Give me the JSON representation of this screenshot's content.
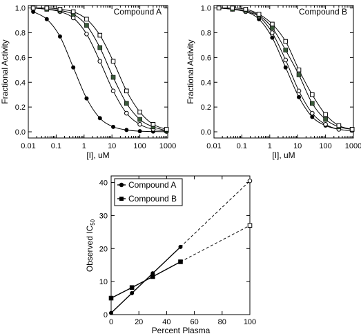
{
  "chart_data": [
    {
      "type": "line",
      "title": "Compound A",
      "xlabel": "[I], uM",
      "ylabel": "Fractional Activity",
      "xscale": "log",
      "xlim": [
        0.01,
        1000
      ],
      "ylim": [
        -0.05,
        1.02
      ],
      "xticks": [
        0.01,
        0.1,
        1,
        10,
        100,
        1000
      ],
      "xtick_labels": [
        "0.01",
        "0.1",
        "1",
        "10",
        "100",
        "1000"
      ],
      "yticks": [
        0.0,
        0.2,
        0.4,
        0.6,
        0.8,
        1.0
      ],
      "ytick_labels": [
        "0.0",
        "0.2",
        "0.4",
        "0.6",
        "0.8",
        "1.0"
      ],
      "x": [
        0.015,
        0.046,
        0.137,
        0.41,
        1.23,
        3.7,
        11.1,
        33.3,
        100,
        300,
        900
      ],
      "series": [
        {
          "marker": "filled-circle",
          "values": [
            0.97,
            0.91,
            0.77,
            0.52,
            0.27,
            0.11,
            0.04,
            0.015,
            0.005,
            0.002,
            0.001
          ]
        },
        {
          "marker": "open-circle",
          "values": [
            1.0,
            0.99,
            0.97,
            0.92,
            0.79,
            0.57,
            0.33,
            0.15,
            0.06,
            0.02,
            0.005
          ]
        },
        {
          "marker": "filled-square",
          "values": [
            1.0,
            0.99,
            0.98,
            0.95,
            0.86,
            0.68,
            0.44,
            0.23,
            0.1,
            0.04,
            0.01
          ]
        },
        {
          "marker": "open-square",
          "values": [
            1.0,
            1.0,
            0.99,
            0.97,
            0.91,
            0.78,
            0.57,
            0.33,
            0.16,
            0.06,
            0.02
          ]
        }
      ]
    },
    {
      "type": "line",
      "title": "Compound B",
      "xlabel": "[I], uM",
      "ylabel": "Fractional Activity",
      "xscale": "log",
      "xlim": [
        0.01,
        1000
      ],
      "ylim": [
        -0.05,
        1.02
      ],
      "xticks": [
        0.01,
        0.1,
        1,
        10,
        100,
        1000
      ],
      "xtick_labels": [
        "0.01",
        "0.1",
        "1",
        "10",
        "100",
        "1000"
      ],
      "yticks": [
        0.0,
        0.2,
        0.4,
        0.6,
        0.8,
        1.0
      ],
      "ytick_labels": [
        "0.0",
        "0.2",
        "0.4",
        "0.6",
        "0.8",
        "1.0"
      ],
      "x": [
        0.015,
        0.046,
        0.137,
        0.41,
        1.23,
        3.7,
        11.1,
        33.3,
        100,
        300,
        900
      ],
      "series": [
        {
          "marker": "filled-circle",
          "values": [
            1.0,
            0.99,
            0.97,
            0.91,
            0.76,
            0.52,
            0.28,
            0.12,
            0.05,
            0.02,
            0.01
          ]
        },
        {
          "marker": "open-circle",
          "values": [
            1.0,
            0.99,
            0.97,
            0.93,
            0.8,
            0.58,
            0.33,
            0.15,
            0.06,
            0.02,
            0.01
          ]
        },
        {
          "marker": "filled-square",
          "values": [
            1.0,
            0.99,
            0.98,
            0.94,
            0.84,
            0.66,
            0.46,
            0.23,
            0.1,
            0.04,
            0.02
          ]
        },
        {
          "marker": "open-square",
          "values": [
            1.0,
            1.0,
            0.99,
            0.95,
            0.87,
            0.73,
            0.5,
            0.3,
            0.14,
            0.05,
            0.02
          ]
        }
      ]
    },
    {
      "type": "line",
      "title": "",
      "xlabel": "Percent Plasma",
      "ylabel": "Observed IC",
      "ylabel_sub": "50",
      "xlim": [
        0,
        100
      ],
      "ylim": [
        0,
        42
      ],
      "xticks": [
        0,
        20,
        40,
        60,
        80,
        100
      ],
      "xtick_labels": [
        "0",
        "20",
        "40",
        "60",
        "80",
        "100"
      ],
      "yticks": [
        0,
        10,
        20,
        30,
        40
      ],
      "ytick_labels": [
        "0",
        "10",
        "20",
        "30",
        "40"
      ],
      "legend": {
        "position": "top-left",
        "entries": [
          "Compound A",
          "Compound B"
        ]
      },
      "series": [
        {
          "name": "Compound A",
          "marker": "filled-circle",
          "x": [
            0,
            15,
            30,
            50
          ],
          "values": [
            0.5,
            6.5,
            12.5,
            20.5
          ],
          "extrapolated": {
            "x": [
              50,
              100
            ],
            "values": [
              20.5,
              40.5
            ]
          }
        },
        {
          "name": "Compound B",
          "marker": "filled-square",
          "x": [
            0,
            15,
            30,
            50
          ],
          "values": [
            5.0,
            8.2,
            11.5,
            16.0
          ],
          "extrapolated": {
            "x": [
              50,
              100
            ],
            "values": [
              16.0,
              27.0
            ]
          }
        }
      ]
    }
  ]
}
